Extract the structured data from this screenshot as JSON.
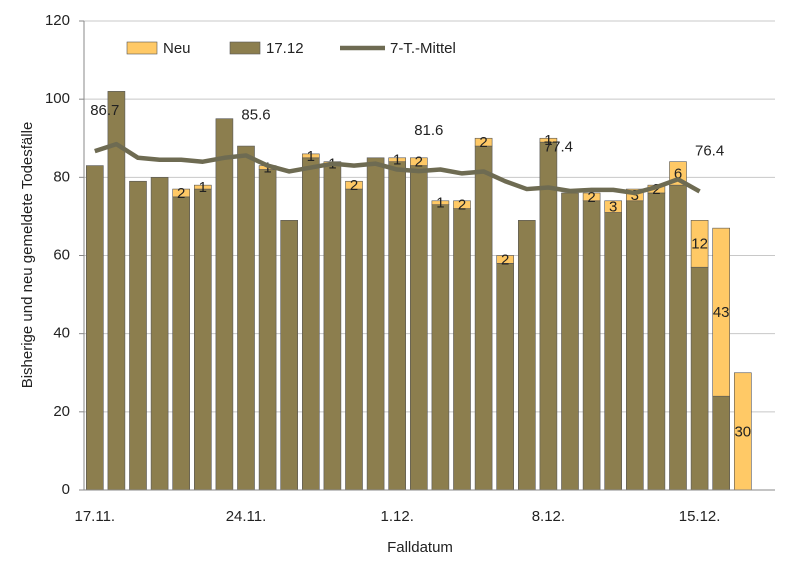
{
  "chart_data": {
    "type": "bar",
    "stacked": true,
    "x_label": "Falldatum",
    "y_label": "Bisherige und neu gemeldete Todesfälle",
    "categories": [
      "17.11.",
      null,
      null,
      null,
      null,
      null,
      null,
      "24.11.",
      null,
      null,
      null,
      null,
      null,
      null,
      "1.12.",
      null,
      null,
      null,
      null,
      null,
      null,
      "8.12.",
      null,
      null,
      null,
      null,
      null,
      null,
      "15.12.",
      null,
      null
    ],
    "series": [
      {
        "name": "Neu",
        "type": "bar",
        "color": "#ffc966",
        "stack_order": 1,
        "values": [
          null,
          null,
          null,
          null,
          2,
          1,
          null,
          null,
          1,
          null,
          1,
          1,
          2,
          null,
          1,
          2,
          1,
          2,
          2,
          2,
          null,
          1,
          null,
          2,
          3,
          3,
          2,
          6,
          12,
          43,
          30
        ]
      },
      {
        "name": "17.12",
        "type": "bar",
        "color": "#8c7e4e",
        "stack_order": 0,
        "values": [
          83,
          102,
          79,
          80,
          75,
          77,
          95,
          88,
          82,
          69,
          85,
          83,
          77,
          85,
          84,
          83,
          73,
          72,
          88,
          58,
          69,
          89,
          76,
          74,
          71,
          74,
          76,
          78,
          57,
          24,
          null
        ]
      },
      {
        "name": "7-T.-Mittel",
        "type": "line",
        "color": "#6e6b52",
        "values": [
          86.7,
          88.5,
          85,
          84.5,
          84.5,
          84,
          85,
          85.6,
          83,
          81.5,
          82.5,
          83.5,
          83,
          83.5,
          82,
          81.6,
          82,
          81,
          81.5,
          79,
          77,
          77.4,
          76.5,
          76.8,
          76.8,
          76,
          77.5,
          79.5,
          76.4,
          null,
          null
        ],
        "value_labels": [
          "86.7",
          null,
          null,
          null,
          null,
          null,
          null,
          "85.6",
          null,
          null,
          null,
          null,
          null,
          null,
          null,
          "81.6",
          null,
          null,
          null,
          null,
          null,
          "77.4",
          null,
          null,
          null,
          null,
          null,
          null,
          "76.4",
          null,
          null
        ]
      }
    ],
    "ylim": [
      0,
      120
    ],
    "yticks": [
      0,
      20,
      40,
      60,
      80,
      100,
      120
    ],
    "grid": true,
    "legend": "top"
  }
}
